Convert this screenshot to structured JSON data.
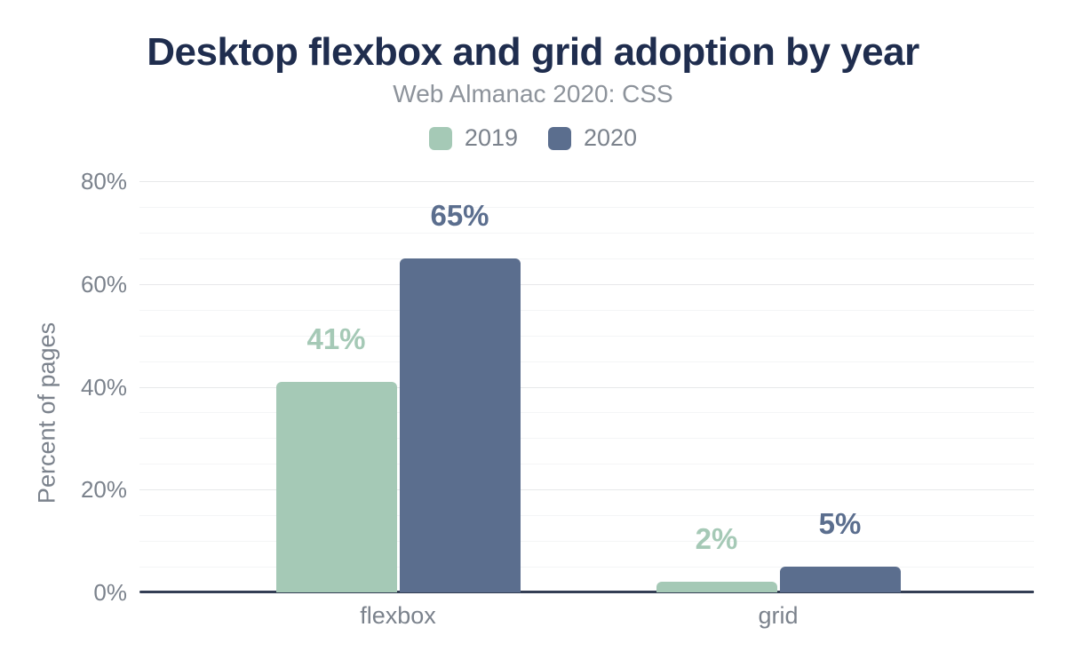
{
  "title": "Desktop flexbox and grid adoption by year",
  "subtitle": "Web Almanac 2020: CSS",
  "chart_data": {
    "type": "bar",
    "categories": [
      "flexbox",
      "grid"
    ],
    "series": [
      {
        "name": "2019",
        "color": "#a5c9b6",
        "values": [
          41,
          2
        ],
        "labels": [
          "41%",
          "2%"
        ]
      },
      {
        "name": "2020",
        "color": "#5b6e8e",
        "values": [
          65,
          5
        ],
        "labels": [
          "65%",
          "5%"
        ]
      }
    ],
    "title": "Desktop flexbox and grid adoption by year",
    "subtitle": "Web Almanac 2020: CSS",
    "xlabel": "",
    "ylabel": "Percent of pages",
    "ylim": [
      0,
      82
    ],
    "y_ticks": [
      {
        "v": 0,
        "label": "0%"
      },
      {
        "v": 20,
        "label": "20%"
      },
      {
        "v": 40,
        "label": "40%"
      },
      {
        "v": 60,
        "label": "60%"
      },
      {
        "v": 80,
        "label": "80%"
      }
    ],
    "grid": true,
    "legend_position": "top"
  },
  "colors": {
    "title": "#1f2d4e",
    "subtitle": "#8d939b",
    "axis_text": "#7b828c",
    "axis_line": "#333e54",
    "grid_major": "#e7e8ea",
    "grid_minor": "#f4f5f6",
    "series_2019": "#a5c9b6",
    "series_2020": "#5b6e8e"
  }
}
